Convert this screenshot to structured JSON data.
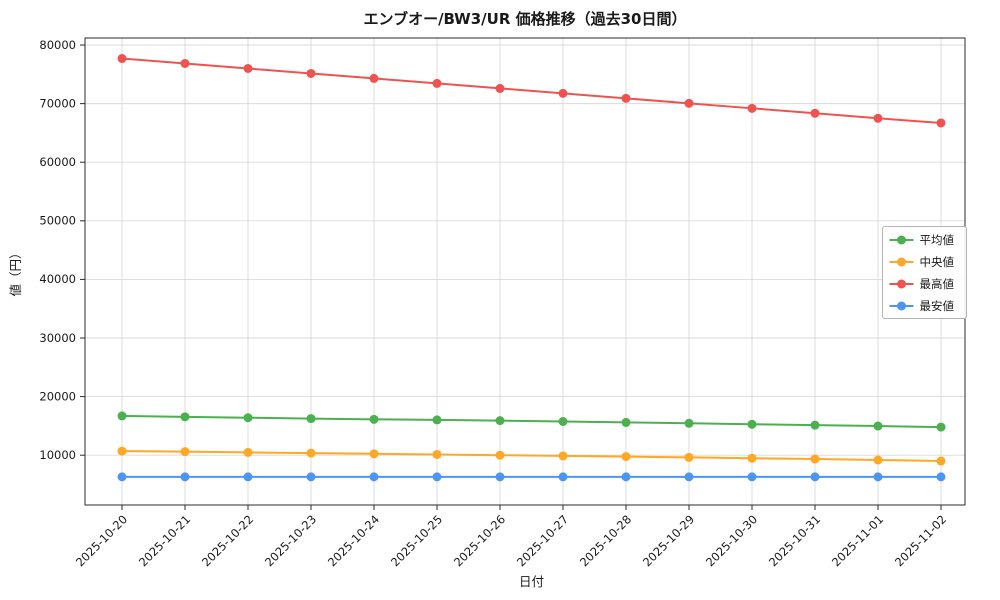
{
  "figure": {
    "title": "エンブオー/BW3/UR 価格推移（過去30日間）",
    "xlabel": "日付",
    "ylabel": "値（円）"
  },
  "chart_data": {
    "type": "line",
    "title": "エンブオー/BW3/UR 価格推移（過去30日間）",
    "xlabel": "日付",
    "ylabel": "値（円）",
    "grid": true,
    "legend_position": "right-middle",
    "ylim": [
      1500,
      81200
    ],
    "yticks": [
      10000,
      20000,
      30000,
      40000,
      50000,
      60000,
      70000,
      80000
    ],
    "categories": [
      "2025-10-20",
      "2025-10-21",
      "2025-10-22",
      "2025-10-23",
      "2025-10-24",
      "2025-10-25",
      "2025-10-26",
      "2025-10-27",
      "2025-10-28",
      "2025-10-29",
      "2025-10-30",
      "2025-10-31",
      "2025-11-01",
      "2025-11-02"
    ],
    "series": [
      {
        "id": "average",
        "name": "平均値",
        "color": "#4caf50",
        "values": [
          16700,
          16550,
          16400,
          16250,
          16120,
          16020,
          15900,
          15750,
          15600,
          15450,
          15280,
          15130,
          14980,
          14800
        ]
      },
      {
        "id": "median",
        "name": "中央値",
        "color": "#ffa726",
        "values": [
          10700,
          10600,
          10480,
          10360,
          10240,
          10120,
          10000,
          9880,
          9760,
          9620,
          9480,
          9340,
          9180,
          9000
        ]
      },
      {
        "id": "max",
        "name": "最高値",
        "color": "#ef5350",
        "values": [
          77700,
          76850,
          76000,
          75150,
          74300,
          73450,
          72600,
          71750,
          70900,
          70050,
          69200,
          68350,
          67500,
          66700
        ]
      },
      {
        "id": "min",
        "name": "最安値",
        "color": "#4d94f7",
        "values": [
          6300,
          6300,
          6300,
          6300,
          6300,
          6300,
          6300,
          6300,
          6300,
          6300,
          6300,
          6300,
          6300,
          6300
        ]
      }
    ],
    "colors": {
      "grid": "#d9d9d9",
      "spine": "#2b2b2b",
      "legend_border": "#b3b3b3"
    }
  }
}
